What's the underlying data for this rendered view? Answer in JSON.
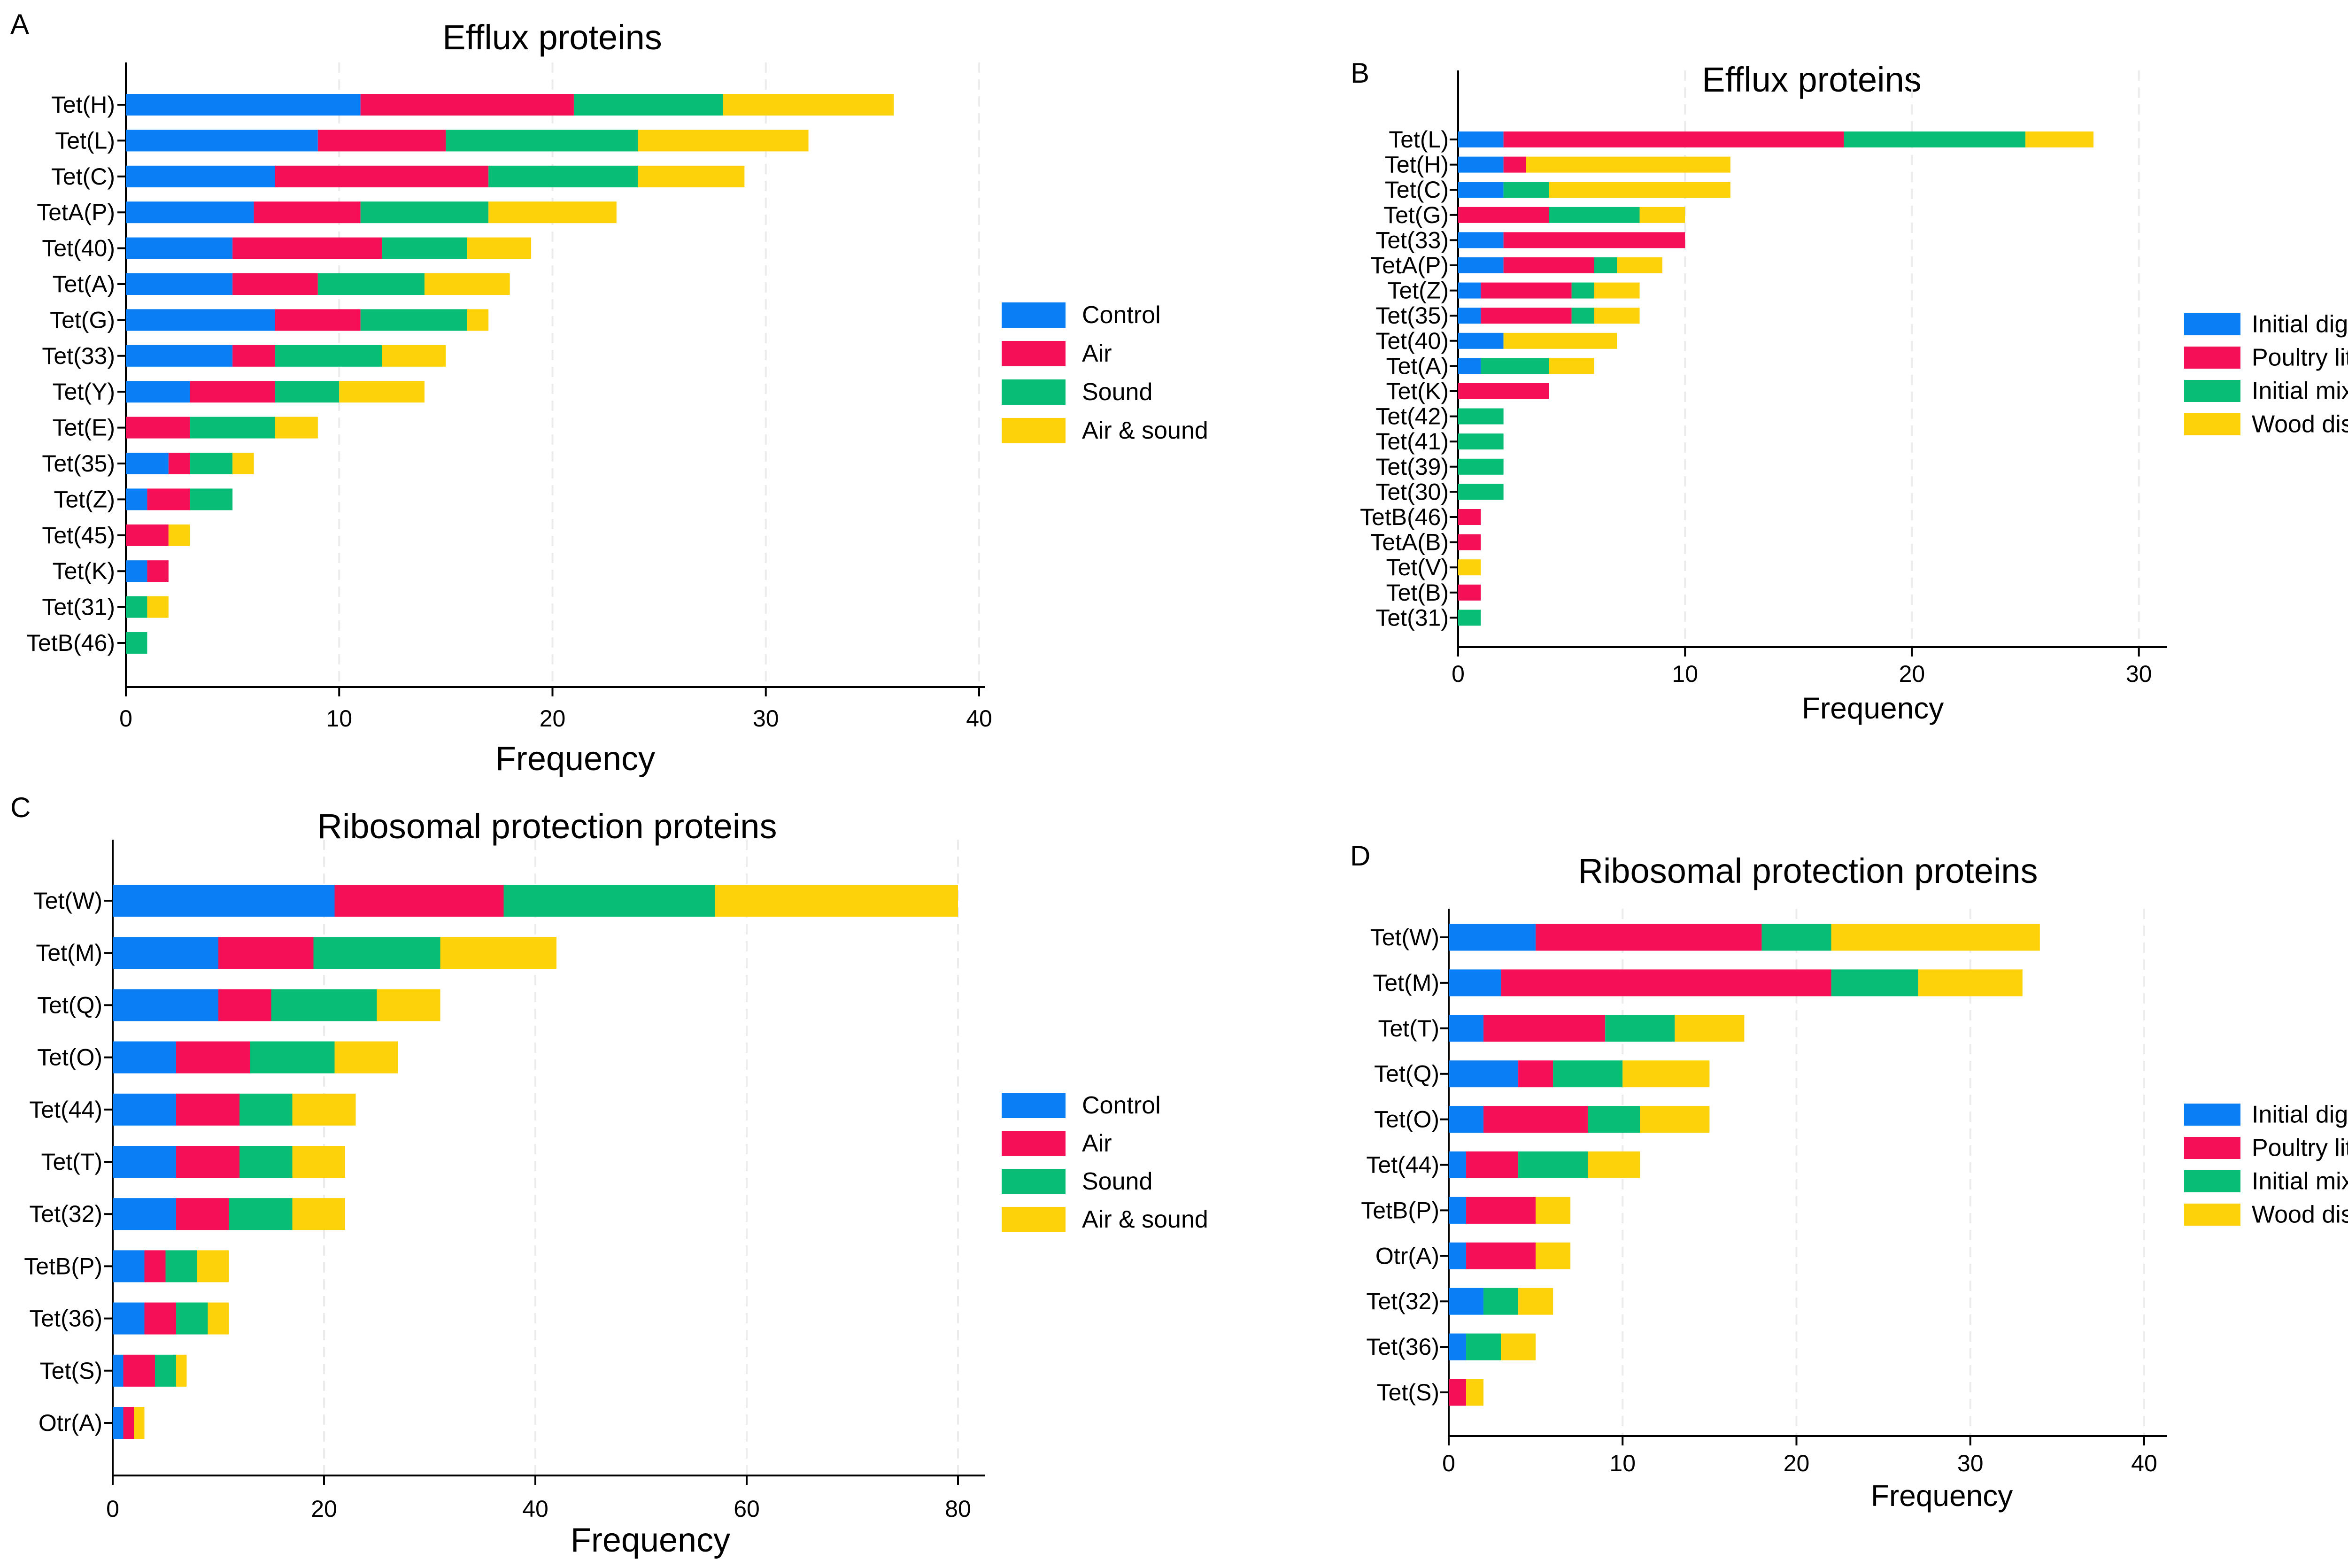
{
  "colors": {
    "control": "#0a7ff5",
    "air": "#f50f57",
    "sound": "#08bd76",
    "air_sound": "#fdd20a"
  },
  "chart_data": [
    {
      "panel": "A",
      "type": "bar",
      "orientation": "horizontal",
      "stacked": true,
      "title": "Efflux proteins",
      "xlabel": "Frequency",
      "xlim": [
        0,
        40
      ],
      "xticks": [
        0,
        10,
        20,
        30,
        40
      ],
      "categories": [
        "Tet(H)",
        "Tet(L)",
        "Tet(C)",
        "TetA(P)",
        "Tet(40)",
        "Tet(A)",
        "Tet(G)",
        "Tet(33)",
        "Tet(Y)",
        "Tet(E)",
        "Tet(35)",
        "Tet(Z)",
        "Tet(45)",
        "Tet(K)",
        "Tet(31)",
        "TetB(46)"
      ],
      "series": [
        {
          "name": "Control",
          "color": "#0a7ff5",
          "values": [
            11,
            9,
            7,
            6,
            5,
            5,
            7,
            5,
            3,
            0,
            2,
            1,
            0,
            1,
            0,
            0
          ]
        },
        {
          "name": "Air",
          "color": "#f50f57",
          "values": [
            10,
            6,
            10,
            5,
            7,
            4,
            4,
            2,
            4,
            3,
            1,
            2,
            2,
            1,
            0,
            0
          ]
        },
        {
          "name": "Sound",
          "color": "#08bd76",
          "values": [
            7,
            9,
            7,
            6,
            4,
            5,
            5,
            5,
            3,
            4,
            2,
            2,
            0,
            0,
            1,
            1
          ]
        },
        {
          "name": "Air & sound",
          "color": "#fdd20a",
          "values": [
            8,
            8,
            5,
            6,
            3,
            4,
            1,
            3,
            4,
            2,
            1,
            0,
            1,
            0,
            1,
            0
          ]
        }
      ],
      "legend": [
        "Control",
        "Air",
        "Sound",
        "Air & sound"
      ]
    },
    {
      "panel": "B",
      "type": "bar",
      "orientation": "horizontal",
      "stacked": true,
      "title": "Efflux proteins",
      "xlabel": "Frequency",
      "xlim": [
        0,
        31
      ],
      "xticks": [
        0,
        10,
        20,
        30
      ],
      "categories": [
        "Tet(L)",
        "Tet(H)",
        "Tet(C)",
        "Tet(G)",
        "Tet(33)",
        "TetA(P)",
        "Tet(Z)",
        "Tet(35)",
        "Tet(40)",
        "Tet(A)",
        "Tet(K)",
        "Tet(42)",
        "Tet(41)",
        "Tet(39)",
        "Tet(30)",
        "TetB(46)",
        "TetA(B)",
        "Tet(V)",
        "Tet(B)",
        "Tet(31)"
      ],
      "series": [
        {
          "name": "Initial digestate",
          "color": "#0a7ff5",
          "values": [
            2,
            2,
            2,
            0,
            2,
            2,
            1,
            1,
            2,
            1,
            0,
            0,
            0,
            0,
            0,
            0,
            0,
            0,
            0,
            0
          ]
        },
        {
          "name": "Poultry litter",
          "color": "#f50f57",
          "values": [
            15,
            1,
            0,
            4,
            8,
            4,
            4,
            4,
            0,
            0,
            4,
            0,
            0,
            0,
            0,
            1,
            1,
            0,
            1,
            0
          ]
        },
        {
          "name": "Initial mix",
          "color": "#08bd76",
          "values": [
            8,
            0,
            2,
            4,
            0,
            1,
            1,
            1,
            0,
            3,
            0,
            2,
            2,
            2,
            2,
            0,
            0,
            0,
            0,
            1
          ]
        },
        {
          "name": "Wood disc",
          "color": "#fdd20a",
          "values": [
            3,
            9,
            8,
            2,
            0,
            2,
            2,
            2,
            5,
            2,
            0,
            0,
            0,
            0,
            0,
            0,
            0,
            1,
            0,
            0
          ]
        }
      ],
      "legend": [
        "Initial digestate",
        "Poultry litter",
        "Initial mix",
        "Wood disc"
      ]
    },
    {
      "panel": "C",
      "type": "bar",
      "orientation": "horizontal",
      "stacked": true,
      "title": "Ribosomal protection proteins",
      "xlabel": "Frequency",
      "xlim": [
        0,
        82
      ],
      "xticks": [
        0,
        20,
        40,
        60,
        80
      ],
      "categories": [
        "Tet(W)",
        "Tet(M)",
        "Tet(Q)",
        "Tet(O)",
        "Tet(44)",
        "Tet(T)",
        "Tet(32)",
        "TetB(P)",
        "Tet(36)",
        "Tet(S)",
        "Otr(A)"
      ],
      "series": [
        {
          "name": "Control",
          "color": "#0a7ff5",
          "values": [
            21,
            10,
            10,
            6,
            6,
            6,
            6,
            3,
            3,
            1,
            1
          ]
        },
        {
          "name": "Air",
          "color": "#f50f57",
          "values": [
            16,
            9,
            5,
            7,
            6,
            6,
            5,
            2,
            3,
            3,
            1
          ]
        },
        {
          "name": "Sound",
          "color": "#08bd76",
          "values": [
            20,
            12,
            10,
            8,
            5,
            5,
            6,
            3,
            3,
            2,
            0
          ]
        },
        {
          "name": "Air & sound",
          "color": "#fdd20a",
          "values": [
            23,
            11,
            6,
            6,
            6,
            5,
            5,
            3,
            2,
            1,
            1
          ]
        }
      ],
      "legend": [
        "Control",
        "Air",
        "Sound",
        "Air & sound"
      ]
    },
    {
      "panel": "D",
      "type": "bar",
      "orientation": "horizontal",
      "stacked": true,
      "title": "Ribosomal protection proteins",
      "xlabel": "Frequency",
      "xlim": [
        0,
        41
      ],
      "xticks": [
        0,
        10,
        20,
        30,
        40
      ],
      "categories": [
        "Tet(W)",
        "Tet(M)",
        "Tet(T)",
        "Tet(Q)",
        "Tet(O)",
        "Tet(44)",
        "TetB(P)",
        "Otr(A)",
        "Tet(32)",
        "Tet(36)",
        "Tet(S)"
      ],
      "series": [
        {
          "name": "Initial digestate",
          "color": "#0a7ff5",
          "values": [
            5,
            3,
            2,
            4,
            2,
            1,
            1,
            1,
            2,
            1,
            0
          ]
        },
        {
          "name": "Poultry litter",
          "color": "#f50f57",
          "values": [
            13,
            19,
            7,
            2,
            6,
            3,
            4,
            4,
            0,
            0,
            1
          ]
        },
        {
          "name": "Initial mix",
          "color": "#08bd76",
          "values": [
            4,
            5,
            4,
            4,
            3,
            4,
            0,
            0,
            2,
            2,
            0
          ]
        },
        {
          "name": "Wood disc",
          "color": "#fdd20a",
          "values": [
            12,
            6,
            4,
            5,
            4,
            3,
            2,
            2,
            2,
            2,
            1
          ]
        }
      ],
      "legend": [
        "Initial digestate",
        "Poultry litter",
        "Initial mix",
        "Wood disc"
      ]
    }
  ]
}
